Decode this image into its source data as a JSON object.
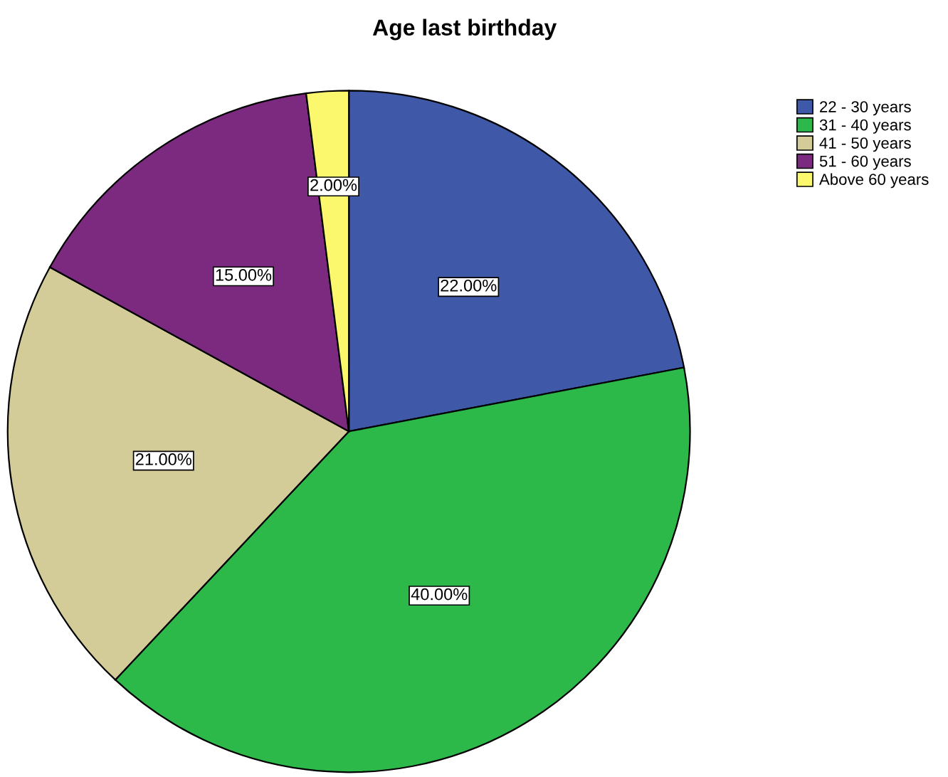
{
  "chart_data": {
    "type": "pie",
    "title": "Age last birthday",
    "categories": [
      "22 - 30 years",
      "31 - 40 years",
      "41 - 50 years",
      "51 - 60 years",
      "Above 60 years"
    ],
    "values": [
      22,
      40,
      21,
      15,
      2
    ],
    "colors": [
      "#3f58a8",
      "#2db84a",
      "#d4cc98",
      "#7b2a7f",
      "#fbf86e"
    ],
    "value_labels": [
      "22.00%",
      "40.00%",
      "21.00%",
      "15.00%",
      "2.00%"
    ],
    "legend": "top right"
  }
}
